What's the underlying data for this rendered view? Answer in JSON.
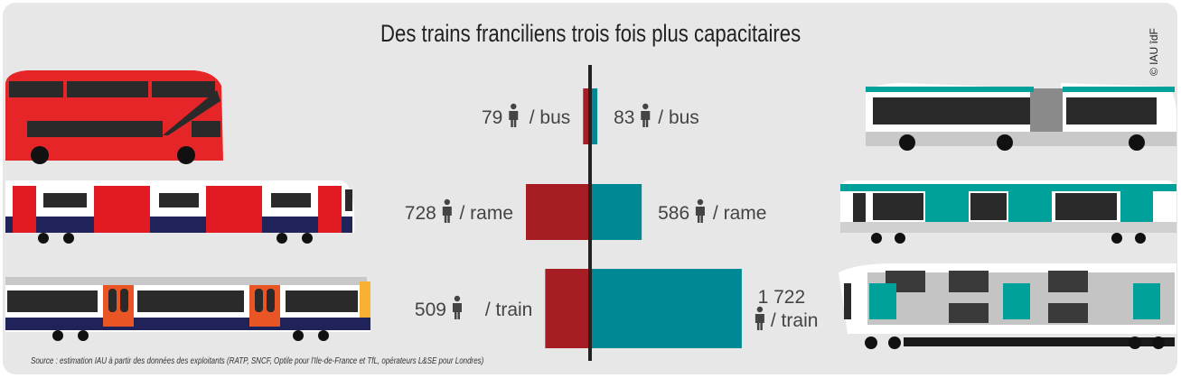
{
  "title": "Des trains franciliens trois fois plus capacitaires",
  "credit": "© IAU îdF",
  "source": "Source : estimation IAU à partir des données des exploitants (RATP, SNCF, Optile pour l'Ile-de-France et TfL, opérateurs L&SE pour Londres)",
  "colors": {
    "left": "#a61e23",
    "right": "#008994",
    "axis": "#222222",
    "background": "#e7e7e7"
  },
  "icons": {
    "person": "person-icon"
  },
  "chart_data": {
    "type": "bar",
    "orientation": "diverging-horizontal",
    "categories": [
      "bus",
      "rame",
      "train"
    ],
    "series": [
      {
        "values": [
          79,
          728,
          509
        ],
        "labels": [
          "79",
          "728",
          "509"
        ],
        "units": [
          "/ bus",
          "/ rame",
          "/ train"
        ]
      },
      {
        "values": [
          83,
          586,
          1722
        ],
        "labels": [
          "83",
          "586",
          "1 722"
        ],
        "units": [
          "/ bus",
          "/ rame",
          "/ train"
        ]
      }
    ]
  }
}
